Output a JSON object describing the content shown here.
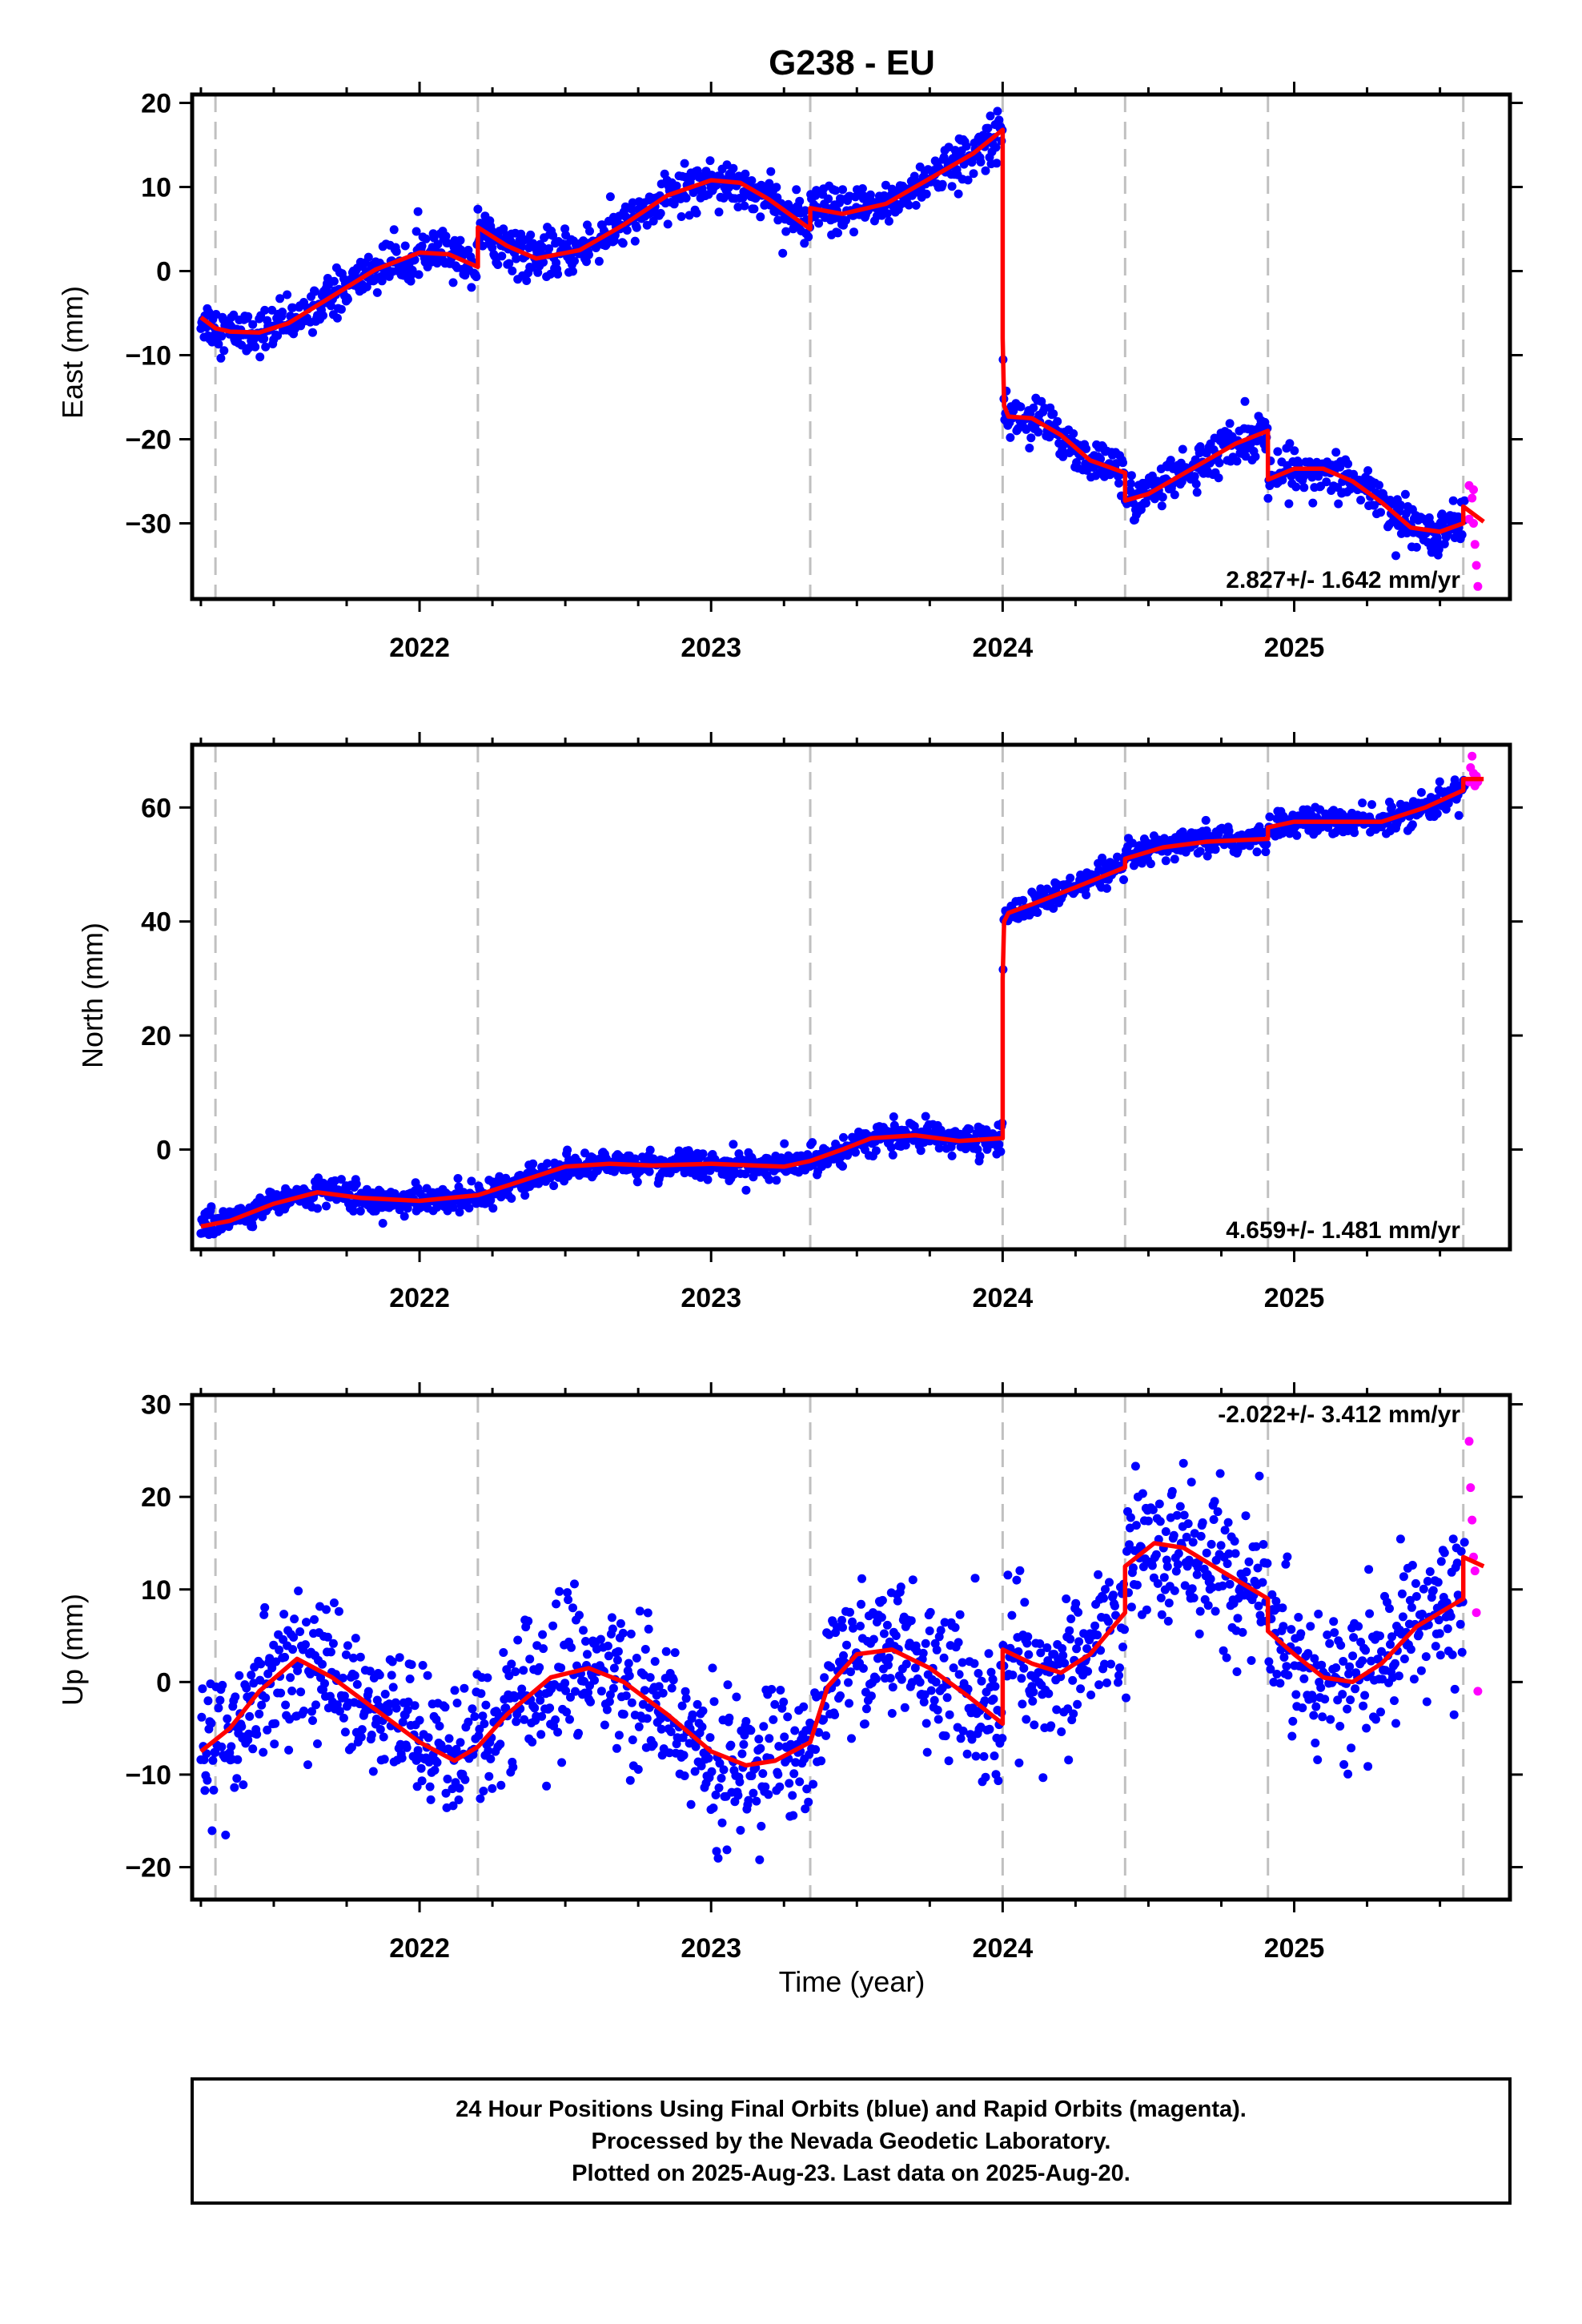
{
  "page_title": "G238 - EU",
  "xlabel": "Time (year)",
  "footer": {
    "line1": "24 Hour Positions Using Final Orbits (blue) and Rapid Orbits (magenta).",
    "line2": "Processed by the Nevada Geodetic Laboratory.",
    "line3": "Plotted on 2025-Aug-23. Last data on 2025-Aug-20."
  },
  "colors": {
    "final_orbits": "#0000ff",
    "rapid_orbits": "#ff00ff",
    "model": "#ff0000",
    "event_lines": "#c0c0c0"
  },
  "chart_data": [
    {
      "type": "scatter",
      "component": "east",
      "ylabel": "East (mm)",
      "ylim": [
        -39,
        21
      ],
      "yticks": [
        20,
        10,
        0,
        -10,
        -20,
        -30
      ],
      "xlim": [
        2021.22,
        2025.74
      ],
      "xticks": [
        2022,
        2023,
        2024,
        2025
      ],
      "event_lines_x": [
        2021.3,
        2022.2,
        2023.34,
        2024.0,
        2024.42,
        2024.91,
        2025.58
      ],
      "rate_text": "2.827+/- 1.642 mm/yr",
      "rate_position": "bottom-right",
      "noise_mm": 1.3,
      "model": {
        "name": "model fit",
        "x": [
          2021.25,
          2021.3,
          2021.35,
          2021.45,
          2021.55,
          2021.7,
          2021.85,
          2022.0,
          2022.1,
          2022.2,
          2022.2,
          2022.3,
          2022.4,
          2022.55,
          2022.7,
          2022.85,
          2023.0,
          2023.1,
          2023.2,
          2023.34,
          2023.34,
          2023.45,
          2023.6,
          2023.75,
          2023.9,
          2024.0,
          2024.0,
          2024.005,
          2024.02,
          2024.1,
          2024.2,
          2024.3,
          2024.42,
          2024.42,
          2024.5,
          2024.6,
          2024.7,
          2024.8,
          2024.91,
          2024.91,
          2025.0,
          2025.1,
          2025.2,
          2025.3,
          2025.4,
          2025.5,
          2025.58,
          2025.58,
          2025.65
        ],
        "y": [
          -5.5,
          -6.8,
          -7.2,
          -7.3,
          -6.2,
          -3.0,
          0.2,
          2.2,
          2.0,
          0.5,
          5.2,
          3.0,
          1.5,
          2.5,
          5.5,
          9.0,
          10.8,
          10.5,
          8.5,
          5.0,
          7.5,
          6.8,
          8.0,
          11.0,
          14.0,
          16.8,
          -8.0,
          -16.0,
          -17.3,
          -17.5,
          -19.5,
          -22.5,
          -24.0,
          -27.3,
          -26.5,
          -24.5,
          -22.5,
          -20.5,
          -19.0,
          -24.8,
          -23.5,
          -23.5,
          -25.0,
          -27.5,
          -30.5,
          -31.0,
          -30.0,
          -28.0,
          -29.8
        ]
      },
      "rapid": {
        "x": [
          2025.6,
          2025.61,
          2025.615,
          2025.62,
          2025.625,
          2025.63,
          2025.6,
          2025.615
        ],
        "y": [
          -25.5,
          -27.0,
          -30.0,
          -32.5,
          -35.0,
          -37.5,
          -29.5,
          -26.0
        ]
      }
    },
    {
      "type": "scatter",
      "component": "north",
      "ylabel": "North (mm)",
      "ylim": [
        -17.5,
        71
      ],
      "yticks": [
        60,
        40,
        20,
        0
      ],
      "xlim": [
        2021.22,
        2025.74
      ],
      "xticks": [
        2022,
        2023,
        2024,
        2025
      ],
      "event_lines_x": [
        2021.3,
        2022.2,
        2023.34,
        2024.0,
        2024.42,
        2024.91,
        2025.58
      ],
      "rate_text": "4.659+/- 1.481 mm/yr",
      "rate_position": "bottom-right",
      "noise_mm": 1.2,
      "model": {
        "name": "model fit",
        "x": [
          2021.25,
          2021.35,
          2021.5,
          2021.65,
          2021.8,
          2022.0,
          2022.2,
          2022.35,
          2022.5,
          2022.65,
          2022.8,
          2023.0,
          2023.15,
          2023.25,
          2023.34,
          2023.45,
          2023.55,
          2023.7,
          2023.85,
          2024.0,
          2024.0,
          2024.005,
          2024.02,
          2024.1,
          2024.25,
          2024.42,
          2024.42,
          2024.55,
          2024.7,
          2024.91,
          2024.91,
          2025.0,
          2025.15,
          2025.3,
          2025.45,
          2025.58,
          2025.58,
          2025.65
        ],
        "y": [
          -13.5,
          -12.5,
          -9.5,
          -7.5,
          -8.5,
          -9.0,
          -8.0,
          -5.5,
          -3.0,
          -2.5,
          -2.8,
          -2.5,
          -2.8,
          -3.0,
          -2.0,
          0.0,
          2.0,
          2.5,
          1.5,
          2.0,
          30.0,
          40.0,
          41.5,
          43.0,
          46.0,
          49.5,
          51.0,
          53.0,
          54.0,
          54.5,
          56.5,
          57.5,
          57.5,
          57.5,
          60.0,
          63.0,
          65.0,
          65.0
        ]
      },
      "rapid": {
        "x": [
          2025.6,
          2025.605,
          2025.61,
          2025.615,
          2025.62,
          2025.625,
          2025.63
        ],
        "y": [
          64.5,
          67.0,
          69.0,
          66.0,
          63.8,
          65.5,
          64.5
        ]
      }
    },
    {
      "type": "scatter",
      "component": "up",
      "ylabel": "Up (mm)",
      "ylim": [
        -23.5,
        31
      ],
      "yticks": [
        30,
        20,
        10,
        0,
        -10,
        -20
      ],
      "xlim": [
        2021.22,
        2025.74
      ],
      "xticks": [
        2022,
        2023,
        2024,
        2025
      ],
      "event_lines_x": [
        2021.3,
        2022.2,
        2023.34,
        2024.0,
        2024.42,
        2024.91,
        2025.58
      ],
      "rate_text": "-2.022+/- 3.412 mm/yr",
      "rate_position": "top-right",
      "noise_mm": 3.8,
      "model": {
        "name": "model fit",
        "x": [
          2021.25,
          2021.35,
          2021.45,
          2021.58,
          2021.7,
          2021.85,
          2022.0,
          2022.12,
          2022.2,
          2022.3,
          2022.45,
          2022.58,
          2022.7,
          2022.85,
          2023.0,
          2023.12,
          2023.22,
          2023.34,
          2023.4,
          2023.5,
          2023.62,
          2023.75,
          2023.88,
          2024.0,
          2024.0,
          2024.1,
          2024.2,
          2024.3,
          2024.42,
          2024.42,
          2024.52,
          2024.62,
          2024.75,
          2024.91,
          2024.91,
          2025.0,
          2025.1,
          2025.2,
          2025.3,
          2025.42,
          2025.58,
          2025.58,
          2025.65
        ],
        "y": [
          -7.5,
          -5.0,
          -1.0,
          2.5,
          0.5,
          -3.0,
          -6.5,
          -8.5,
          -7.0,
          -3.5,
          0.5,
          1.5,
          0.0,
          -3.5,
          -7.5,
          -9.0,
          -8.5,
          -6.5,
          -0.5,
          3.0,
          3.5,
          1.5,
          -1.5,
          -4.5,
          3.5,
          2.0,
          1.0,
          3.0,
          7.5,
          12.5,
          15.0,
          14.5,
          12.0,
          9.0,
          5.5,
          3.0,
          0.5,
          0.0,
          2.0,
          6.0,
          9.0,
          13.5,
          12.5
        ]
      },
      "rapid": {
        "x": [
          2025.6,
          2025.605,
          2025.61,
          2025.615,
          2025.62,
          2025.625,
          2025.63
        ],
        "y": [
          26.0,
          21.0,
          17.5,
          13.5,
          12.0,
          7.5,
          -1.0
        ]
      }
    }
  ]
}
